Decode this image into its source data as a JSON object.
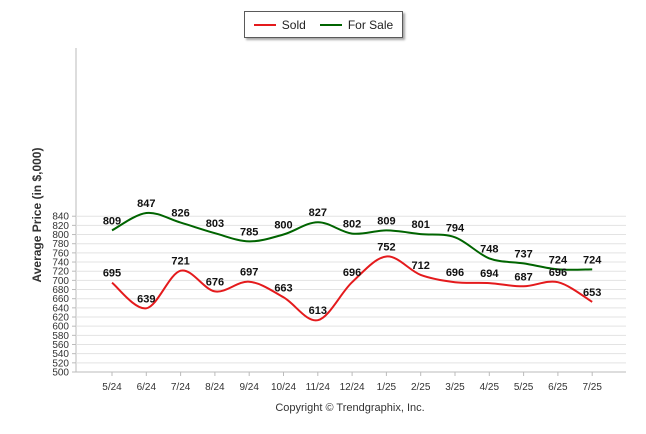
{
  "chart_data": {
    "type": "line",
    "categories": [
      "5/24",
      "6/24",
      "7/24",
      "8/24",
      "9/24",
      "10/24",
      "11/24",
      "12/24",
      "1/25",
      "2/25",
      "3/25",
      "4/25",
      "5/25",
      "6/25",
      "7/25"
    ],
    "series": [
      {
        "name": "Sold",
        "color": "#e41a1c",
        "values": [
          695,
          639,
          721,
          676,
          697,
          663,
          613,
          696,
          752,
          712,
          696,
          694,
          687,
          696,
          653
        ]
      },
      {
        "name": "For Sale",
        "color": "#006400",
        "values": [
          809,
          847,
          826,
          803,
          785,
          800,
          827,
          802,
          809,
          801,
          794,
          748,
          737,
          724,
          724
        ]
      }
    ],
    "ylabel": "Average Price (in $,000)",
    "xlabel": "",
    "ylim": [
      500,
      850
    ],
    "yticks": [
      500,
      520,
      540,
      560,
      580,
      600,
      620,
      640,
      660,
      680,
      700,
      720,
      740,
      760,
      780,
      800,
      820,
      840
    ],
    "grid": true,
    "legend": "top-center"
  },
  "legend": {
    "sold_label": "Sold",
    "forsale_label": "For Sale"
  },
  "copyright": "Copyright © Trendgraphix, Inc."
}
